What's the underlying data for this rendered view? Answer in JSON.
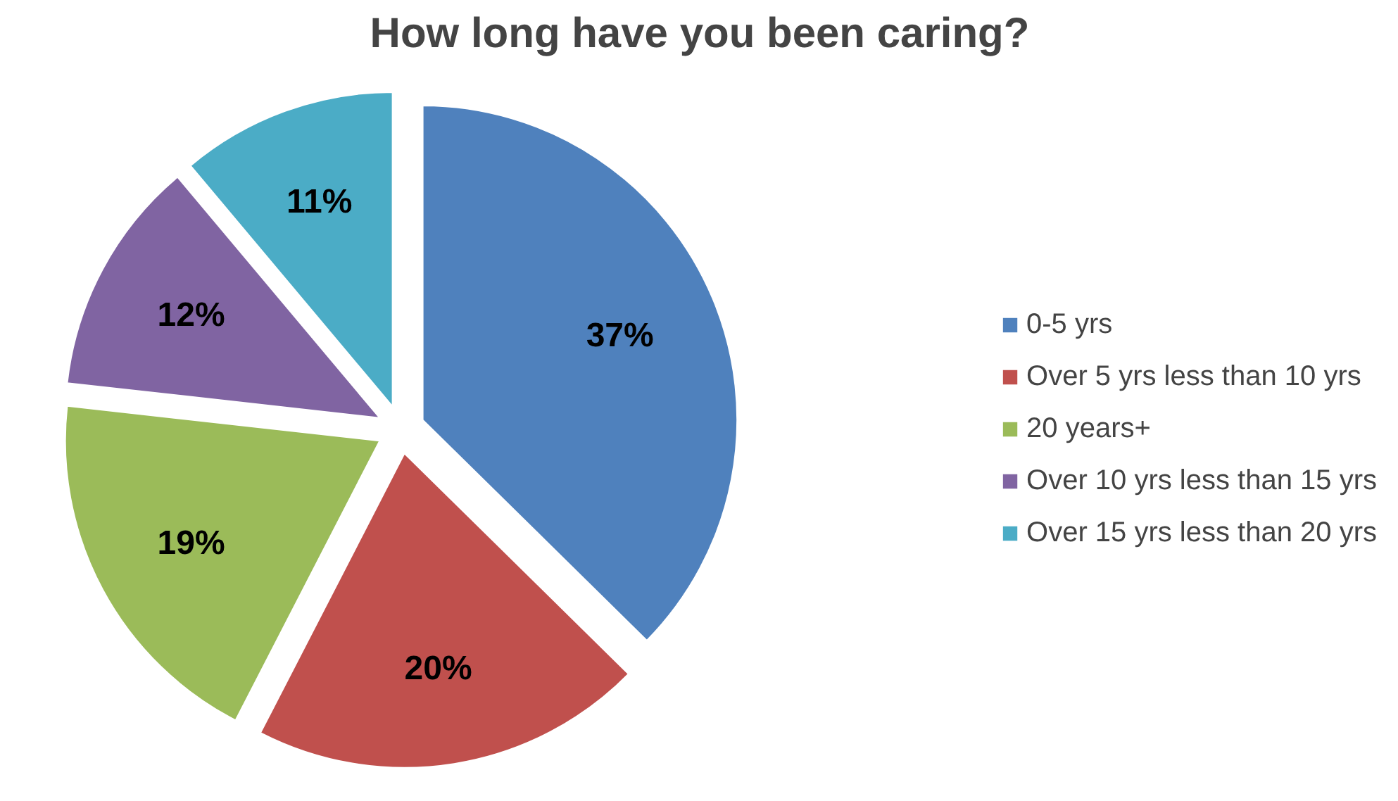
{
  "chart_data": {
    "type": "pie",
    "title": "How long have you been caring?",
    "categories": [
      "0-5 yrs",
      "Over 5 yrs less than 10 yrs",
      "20 years+",
      "Over 10 yrs less than 15 yrs",
      "Over 15 yrs less than 20 yrs"
    ],
    "values": [
      37,
      20,
      19,
      12,
      11
    ],
    "value_labels": [
      "37%",
      "20%",
      "19%",
      "12%",
      "11%"
    ],
    "colors": [
      "#4f81bd",
      "#c0504d",
      "#9bbb59",
      "#8064a2",
      "#4bacc6"
    ],
    "legend": "right"
  }
}
